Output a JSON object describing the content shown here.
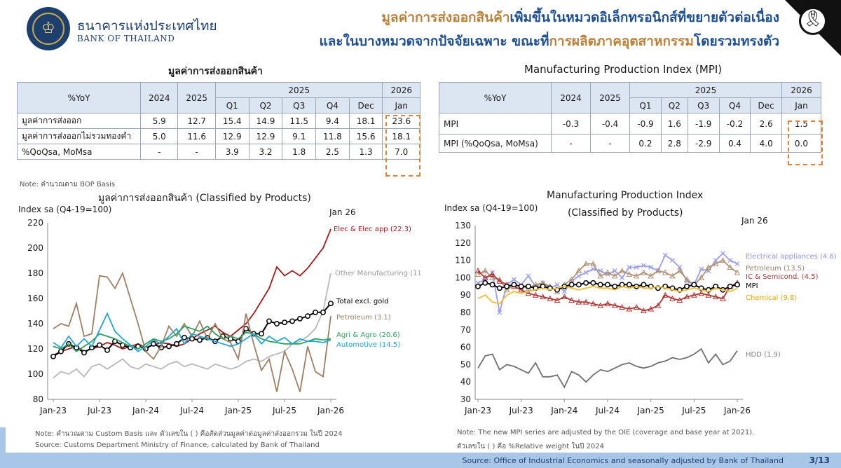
{
  "header": {
    "brand_th": "ธนาคารแห่งประเทศไทย",
    "brand_en": "BANK OF THAILAND",
    "title1_a": "มูลค่าการส่งออกสินค้า",
    "title1_b": "เพิ่มขึ้นในหมวดอิเล็กทรอนิกส์ที่ขยายตัวต่อเนื่อง",
    "title2_a": "และในบางหมวดจากปัจจัยเฉพาะ ขณะที่",
    "title2_b": "การผลิตภาคอุตสาหกรรม",
    "title2_c": "โดยรวมทรงตัว"
  },
  "export_table": {
    "title": "มูลค่าการส่งออกสินค้า",
    "corner": "%YoY",
    "year_cols": [
      "2024",
      "2025"
    ],
    "group_2025": "2025",
    "group_2026": "2026",
    "sub_cols": [
      "Q1",
      "Q2",
      "Q3",
      "Q4",
      "Dec",
      "Jan"
    ],
    "rows": [
      {
        "label": "มูลค่าการส่งออก",
        "values": [
          "5.9",
          "12.7",
          "15.4",
          "14.9",
          "11.5",
          "9.4",
          "18.1",
          "23.6"
        ]
      },
      {
        "label": "มูลค่าการส่งออกไม่รวมทองคำ",
        "values": [
          "5.0",
          "11.6",
          "12.9",
          "12.9",
          "9.1",
          "11.8",
          "15.6",
          "18.1"
        ]
      },
      {
        "label": "%QoQsa, MoMsa",
        "values": [
          "-",
          "-",
          "3.9",
          "3.2",
          "1.8",
          "2.5",
          "1.3",
          "7.0"
        ]
      }
    ],
    "note": "Note: คำนวณตาม BOP Basis"
  },
  "mpi_table": {
    "title": "Manufacturing Production Index (MPI)",
    "corner": "%YoY",
    "year_cols": [
      "2024",
      "2025"
    ],
    "group_2025": "2025",
    "group_2026": "2026",
    "sub_cols": [
      "Q1",
      "Q2",
      "Q3",
      "Q4",
      "Dec",
      "Jan"
    ],
    "rows": [
      {
        "label": "MPI",
        "values": [
          "-0.3",
          "-0.4",
          "-0.9",
          "1.6",
          "-1.9",
          "-0.2",
          "2.6",
          "1.5"
        ]
      },
      {
        "label": "MPI (%QoQsa, MoMsa)",
        "values": [
          "-",
          "-",
          "0.2",
          "2.8",
          "-2.9",
          "0.4",
          "4.0",
          "0.0"
        ]
      }
    ]
  },
  "left_chart_text": {
    "title": "มูลค่าการส่งออกสินค้า (Classified by Products)",
    "ylabel": "Index sa (Q4-19=100)",
    "annotation": "Jan 26",
    "note1": "Note: คำนวณตาม Custom Basis และ ตัวเลขใน ( ) คือสัดส่วนมูลค่าต่อมูลค่าส่งออกรวม ในปี 2024",
    "note2": "Source: Customs Department Ministry of Finance, calculated by Bank of Thailand"
  },
  "right_chart_text": {
    "title1": "Manufacturing Production Index",
    "title2": "(Classified by Products)",
    "ylabel": "Index sa (Q4-19=100)",
    "annotation": "Jan 26",
    "note1": "Note: The new MPI series are adjusted by the OIE (coverage and base year at 2021).",
    "note2": "ตัวเลขใน ( ) คือ %Relative weight ในปี 2024"
  },
  "chart_data": [
    {
      "type": "line",
      "title": "มูลค่าการส่งออกสินค้า (Classified by Products)",
      "ylabel": "Index sa (Q4-19=100)",
      "ylim": [
        80,
        220
      ],
      "yticks": [
        80,
        100,
        120,
        140,
        160,
        180,
        200,
        220
      ],
      "x_tick_labels": [
        "Jan-23",
        "Jul-23",
        "Jan-24",
        "Jul-24",
        "Jan-25",
        "Jul-25",
        "Jan-26"
      ],
      "x_count": 37,
      "grid": false,
      "series": [
        {
          "name": "Elec & Elec app (22.3)",
          "color": "#a01c1c",
          "values": [
            115,
            118,
            120,
            122,
            118,
            120,
            122,
            125,
            123,
            120,
            122,
            124,
            121,
            123,
            125,
            124,
            122,
            124,
            128,
            132,
            135,
            138,
            133,
            130,
            135,
            140,
            148,
            158,
            168,
            185,
            178,
            182,
            178,
            184,
            192,
            200,
            215
          ]
        },
        {
          "name": "Other Manufacturing (11.5)",
          "color": "#b8b8b8",
          "values": [
            97,
            102,
            100,
            104,
            98,
            106,
            108,
            104,
            108,
            112,
            106,
            104,
            108,
            106,
            104,
            108,
            110,
            106,
            108,
            106,
            104,
            108,
            106,
            104,
            106,
            110,
            112,
            110,
            114,
            116,
            118,
            124,
            126,
            130,
            136,
            150,
            180
          ]
        },
        {
          "name": "Total excl. gold",
          "color": "#000000",
          "marker": "circle",
          "values": [
            114,
            118,
            124,
            121,
            117,
            121,
            123,
            119,
            126,
            123,
            121,
            122,
            120,
            124,
            121,
            122,
            124,
            129,
            128,
            127,
            129,
            126,
            130,
            128,
            126,
            136,
            132,
            132,
            142,
            140,
            141,
            142,
            144,
            146,
            149,
            149,
            156
          ]
        },
        {
          "name": "Petroleum (3.1)",
          "color": "#9b8065",
          "values": [
            136,
            140,
            138,
            156,
            130,
            132,
            178,
            177,
            168,
            180,
            160,
            140,
            118,
            112,
            122,
            138,
            130,
            140,
            130,
            142,
            128,
            140,
            128,
            125,
            112,
            148,
            124,
            103,
            112,
            86,
            118,
            104,
            86,
            122,
            102,
            98,
            146
          ]
        },
        {
          "name": "Agri & Agro (20.6)",
          "color": "#2e9e5e",
          "values": [
            122,
            120,
            124,
            118,
            122,
            126,
            132,
            130,
            128,
            125,
            122,
            120,
            124,
            128,
            126,
            128,
            132,
            138,
            136,
            134,
            138,
            132,
            128,
            130,
            128,
            133,
            132,
            128,
            126,
            125,
            124,
            124,
            124,
            126,
            128,
            127,
            128
          ]
        },
        {
          "name": "Automotive (14.5)",
          "color": "#25a6d0",
          "values": [
            125,
            121,
            130,
            122,
            128,
            122,
            135,
            148,
            134,
            128,
            123,
            118,
            122,
            127,
            124,
            130,
            136,
            124,
            132,
            130,
            128,
            126,
            124,
            122,
            124,
            128,
            132,
            124,
            130,
            126,
            129,
            124,
            128,
            126,
            126,
            125,
            127
          ]
        }
      ]
    },
    {
      "type": "line",
      "title": "Manufacturing Production Index (Classified by Products)",
      "ylabel": "Index sa (Q4-19=100)",
      "ylim": [
        30,
        130
      ],
      "yticks": [
        30,
        40,
        50,
        60,
        70,
        80,
        90,
        100,
        110,
        120,
        130
      ],
      "x_tick_labels": [
        "Jan-23",
        "Jul-23",
        "Jan-24",
        "Jul-24",
        "Jan-25",
        "Jul-25",
        "Jan-26"
      ],
      "x_count": 37,
      "grid": false,
      "series": [
        {
          "name": "Electrical appliances (4.6)",
          "color": "#9a9ef0",
          "marker": "cross",
          "values": [
            97,
            99,
            103,
            80,
            96,
            99,
            96,
            101,
            95,
            97,
            94,
            96,
            92,
            98,
            101,
            103,
            105,
            104,
            102,
            104,
            100,
            106,
            106,
            107,
            106,
            104,
            113,
            110,
            106,
            98,
            96,
            105,
            104,
            110,
            114,
            110,
            108
          ]
        },
        {
          "name": "Petroleum (13.5)",
          "color": "#b09275",
          "marker": "triangle",
          "values": [
            102,
            104,
            100,
            99,
            93,
            96,
            95,
            94,
            96,
            97,
            95,
            92,
            96,
            99,
            104,
            108,
            108,
            101,
            103,
            101,
            104,
            102,
            101,
            103,
            101,
            104,
            103,
            101,
            104,
            99,
            96,
            100,
            106,
            108,
            110,
            106,
            103
          ]
        },
        {
          "name": "IC & Semicond. (4.5)",
          "color": "#b03434",
          "marker": "triangle",
          "values": [
            104,
            100,
            102,
            98,
            96,
            95,
            93,
            91,
            90,
            89,
            88,
            87,
            89,
            87,
            86,
            86,
            85,
            84,
            85,
            84,
            83,
            82,
            83,
            81,
            82,
            84,
            90,
            88,
            87,
            89,
            90,
            91,
            90,
            89,
            88,
            95,
            97
          ]
        },
        {
          "name": "MPI",
          "color": "#000000",
          "marker": "circle",
          "values": [
            95,
            97,
            96,
            94,
            95,
            96,
            95,
            95,
            94,
            95,
            94,
            93,
            95,
            96,
            96,
            97,
            97,
            96,
            96,
            95,
            96,
            96,
            95,
            96,
            95,
            94,
            95,
            94,
            93,
            95,
            96,
            94,
            93,
            95,
            93,
            95,
            96
          ]
        },
        {
          "name": "Chemical (9.8)",
          "color": "#f0c030",
          "values": [
            88,
            90,
            86,
            85,
            90,
            92,
            91,
            92,
            93,
            94,
            93,
            94,
            95,
            94,
            93,
            94,
            95,
            94,
            94,
            93,
            95,
            94,
            95,
            94,
            94,
            95,
            94,
            93,
            92,
            93,
            94,
            93,
            92,
            94,
            93,
            92,
            94
          ]
        },
        {
          "name": "HDD (1.9)",
          "color": "#707070",
          "values": [
            48,
            55,
            56,
            47,
            50,
            49,
            47,
            45,
            51,
            43,
            43,
            44,
            37,
            46,
            44,
            40,
            44,
            47,
            46,
            48,
            50,
            51,
            49,
            48,
            49,
            51,
            52,
            54,
            53,
            54,
            56,
            59,
            51,
            56,
            50,
            52,
            58
          ]
        }
      ]
    }
  ],
  "footer": {
    "source": "Source: Office of Industrial Economics and seasonally adjusted by Bank of Thailand",
    "page": "3/13"
  }
}
